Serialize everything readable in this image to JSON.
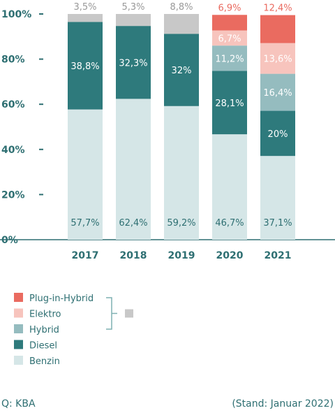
{
  "chart_data": {
    "type": "bar",
    "stacked": true,
    "categories": [
      "2017",
      "2018",
      "2019",
      "2020",
      "2021"
    ],
    "series": [
      {
        "name": "Benzin",
        "color": "#d5e6e7",
        "label_color": "#2e6f72",
        "values": [
          57.7,
          62.4,
          59.2,
          46.7,
          37.1
        ],
        "labels": [
          "57,7%",
          "62,4%",
          "59,2%",
          "46,7%",
          "37,1%"
        ]
      },
      {
        "name": "Diesel",
        "color": "#2e7a7c",
        "label_color": "#ffffff",
        "values": [
          38.8,
          32.3,
          32,
          28.1,
          20
        ],
        "labels": [
          "38,8%",
          "32,3%",
          "32%",
          "28,1%",
          "20%"
        ]
      },
      {
        "name": "Hybrid",
        "color": "#95bcbf",
        "label_color": "#ffffff",
        "values": [
          0,
          0,
          0,
          11.2,
          16.4
        ],
        "labels": [
          "",
          "",
          "",
          "11,2%",
          "16,4%"
        ]
      },
      {
        "name": "Elektro",
        "color": "#f7c4bd",
        "label_color": "#ffffff",
        "values": [
          0,
          0,
          0,
          6.7,
          13.6
        ],
        "labels": [
          "",
          "",
          "",
          "6,7%",
          "13,6%"
        ]
      },
      {
        "name": "Plug-in-Hybrid",
        "color": "#ea6b60",
        "label_color": "#ea6b60",
        "values": [
          0,
          0,
          0,
          6.9,
          12.4
        ],
        "labels": [
          "",
          "",
          "",
          "6,9%",
          "12,4%"
        ]
      },
      {
        "name": "",
        "color": "#c8c8c8",
        "label_color": "#999999",
        "values": [
          3.5,
          5.3,
          8.8,
          0,
          0
        ],
        "labels": [
          "3,5%",
          "5,3%",
          "8,8%",
          "",
          ""
        ]
      }
    ],
    "yticks": [
      "0%",
      "20%",
      "40%",
      "60%",
      "80%",
      "100%"
    ],
    "ylim": [
      0,
      100
    ],
    "legend_order": [
      "Plug-in-Hybrid",
      "Elektro",
      "Hybrid",
      "Diesel",
      "Benzin"
    ],
    "grouped_swatch_color": "#c8c8c8",
    "legend_position": "bottom-left"
  },
  "footer": {
    "source": "Q: KBA",
    "stand": "(Stand: Januar 2022)"
  }
}
